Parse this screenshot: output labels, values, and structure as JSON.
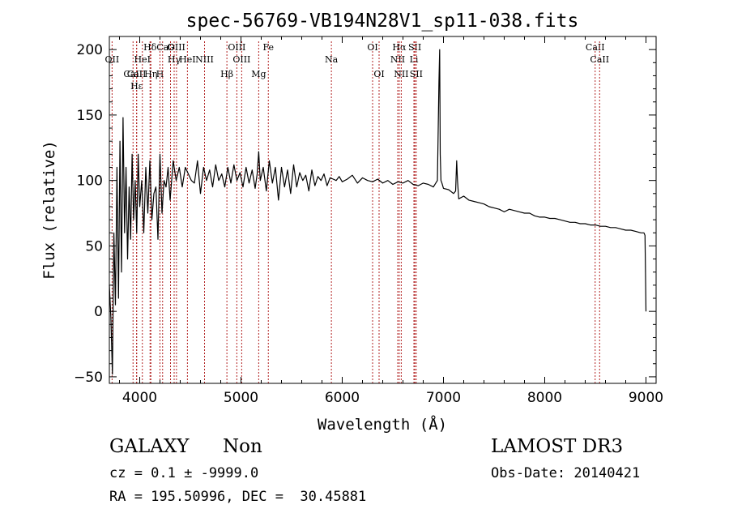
{
  "chart_data": {
    "type": "line",
    "title": "spec-56769-VB194N28V1_sp11-038.fits",
    "xlabel": "Wavelength (Å)",
    "ylabel": "Flux (relative)",
    "xlim": [
      3700,
      9100
    ],
    "ylim": [
      -55,
      210
    ],
    "x_ticks": [
      4000,
      5000,
      6000,
      7000,
      8000,
      9000
    ],
    "y_ticks": [
      -50,
      0,
      50,
      100,
      150,
      200
    ],
    "grid": false,
    "line_color": "#000000",
    "marker_color": "#b22222",
    "series": [
      {
        "name": "spectrum",
        "x": [
          3700,
          3715,
          3730,
          3745,
          3760,
          3775,
          3790,
          3805,
          3820,
          3835,
          3850,
          3865,
          3880,
          3895,
          3910,
          3925,
          3940,
          3955,
          3970,
          3985,
          4000,
          4020,
          4040,
          4060,
          4080,
          4100,
          4120,
          4140,
          4160,
          4180,
          4200,
          4220,
          4240,
          4260,
          4280,
          4300,
          4330,
          4360,
          4390,
          4420,
          4450,
          4480,
          4510,
          4540,
          4570,
          4600,
          4630,
          4660,
          4690,
          4720,
          4750,
          4780,
          4810,
          4840,
          4870,
          4900,
          4930,
          4960,
          4990,
          5020,
          5050,
          5080,
          5110,
          5140,
          5160,
          5175,
          5190,
          5220,
          5250,
          5280,
          5310,
          5340,
          5370,
          5400,
          5430,
          5460,
          5490,
          5520,
          5550,
          5580,
          5610,
          5640,
          5670,
          5700,
          5730,
          5760,
          5790,
          5820,
          5850,
          5880,
          5910,
          5940,
          5970,
          6000,
          6050,
          6100,
          6150,
          6200,
          6250,
          6300,
          6350,
          6400,
          6450,
          6500,
          6550,
          6600,
          6650,
          6700,
          6750,
          6800,
          6850,
          6900,
          6940,
          6955,
          6962,
          6968,
          6975,
          6985,
          7000,
          7050,
          7100,
          7120,
          7130,
          7138,
          7150,
          7200,
          7250,
          7300,
          7350,
          7400,
          7450,
          7500,
          7550,
          7600,
          7650,
          7700,
          7750,
          7800,
          7850,
          7900,
          7950,
          8000,
          8050,
          8100,
          8150,
          8200,
          8250,
          8300,
          8350,
          8400,
          8450,
          8500,
          8550,
          8600,
          8650,
          8700,
          8750,
          8800,
          8850,
          8900,
          8950,
          8980,
          8990,
          8995,
          9000
        ],
        "y": [
          20,
          -5,
          -48,
          60,
          5,
          110,
          10,
          130,
          30,
          148,
          60,
          110,
          40,
          95,
          55,
          120,
          70,
          100,
          60,
          120,
          80,
          100,
          60,
          110,
          75,
          115,
          70,
          90,
          95,
          55,
          120,
          75,
          100,
          95,
          110,
          85,
          115,
          100,
          110,
          95,
          110,
          105,
          100,
          98,
          115,
          90,
          110,
          100,
          108,
          95,
          112,
          100,
          105,
          95,
          110,
          98,
          112,
          100,
          106,
          95,
          110,
          98,
          108,
          94,
          105,
          122,
          100,
          110,
          92,
          115,
          98,
          110,
          85,
          110,
          95,
          108,
          90,
          112,
          95,
          106,
          100,
          104,
          92,
          108,
          96,
          103,
          100,
          105,
          96,
          102,
          101,
          100,
          103,
          99,
          101,
          104,
          98,
          102,
          100,
          99,
          101,
          98,
          100,
          97,
          99,
          98,
          100,
          97,
          96,
          98,
          97,
          95,
          100,
          175,
          200,
          120,
          100,
          98,
          94,
          93,
          90,
          92,
          115,
          100,
          86,
          88,
          85,
          84,
          83,
          82,
          80,
          79,
          78,
          76,
          78,
          77,
          76,
          75,
          75,
          73,
          72,
          72,
          71,
          71,
          70,
          69,
          68,
          68,
          67,
          67,
          66,
          66,
          65,
          65,
          64,
          64,
          63,
          62,
          62,
          61,
          60,
          60,
          58,
          30,
          0
        ]
      }
    ],
    "lines": [
      {
        "x": 3727,
        "label": "OII",
        "row": 1
      },
      {
        "x": 3934,
        "label": "CaII",
        "row": 2
      },
      {
        "x": 3969,
        "label": "CaII",
        "row": 2
      },
      {
        "x": 3970,
        "label": "Hε",
        "row": 3
      },
      {
        "x": 4102,
        "label": "Hδ",
        "row": 0
      },
      {
        "x": 4026,
        "label": "HeI",
        "row": 1
      },
      {
        "x": 4110,
        "label": "Hη",
        "row": 2
      },
      {
        "x": 4200,
        "label": "H",
        "row": 2
      },
      {
        "x": 4226,
        "label": "Ca",
        "row": 0
      },
      {
        "x": 4304,
        "label": "G",
        "row": 0
      },
      {
        "x": 4340,
        "label": "Hγ",
        "row": 1
      },
      {
        "x": 4363,
        "label": "OIII",
        "row": 0
      },
      {
        "x": 4471,
        "label": "HeI",
        "row": 1
      },
      {
        "x": 4640,
        "label": "NIII",
        "row": 1
      },
      {
        "x": 4861,
        "label": "Hβ",
        "row": 2
      },
      {
        "x": 4959,
        "label": "OIII",
        "row": 0
      },
      {
        "x": 5007,
        "label": "OIII",
        "row": 1
      },
      {
        "x": 5175,
        "label": "Mg",
        "row": 2
      },
      {
        "x": 5270,
        "label": "Fe",
        "row": 0
      },
      {
        "x": 5893,
        "label": "Na",
        "row": 1
      },
      {
        "x": 6300,
        "label": "OI",
        "row": 0
      },
      {
        "x": 6364,
        "label": "OI",
        "row": 2
      },
      {
        "x": 6548,
        "label": "NII",
        "row": 1
      },
      {
        "x": 6563,
        "label": "Hα",
        "row": 0
      },
      {
        "x": 6583,
        "label": "NII",
        "row": 2
      },
      {
        "x": 6708,
        "label": "Li",
        "row": 1
      },
      {
        "x": 6717,
        "label": "SII",
        "row": 0
      },
      {
        "x": 6731,
        "label": "SII",
        "row": 2
      },
      {
        "x": 8498,
        "label": "CaII",
        "row": 0
      },
      {
        "x": 8542,
        "label": "CaII",
        "row": 1
      }
    ]
  },
  "info": {
    "class": "GALAXY",
    "subclass": "Non",
    "survey": "LAMOST DR3",
    "cz": "cz = 0.1 ± -9999.0",
    "obs_date": "Obs-Date: 20140421",
    "radec": "RA = 195.50996, DEC =  30.45881"
  }
}
